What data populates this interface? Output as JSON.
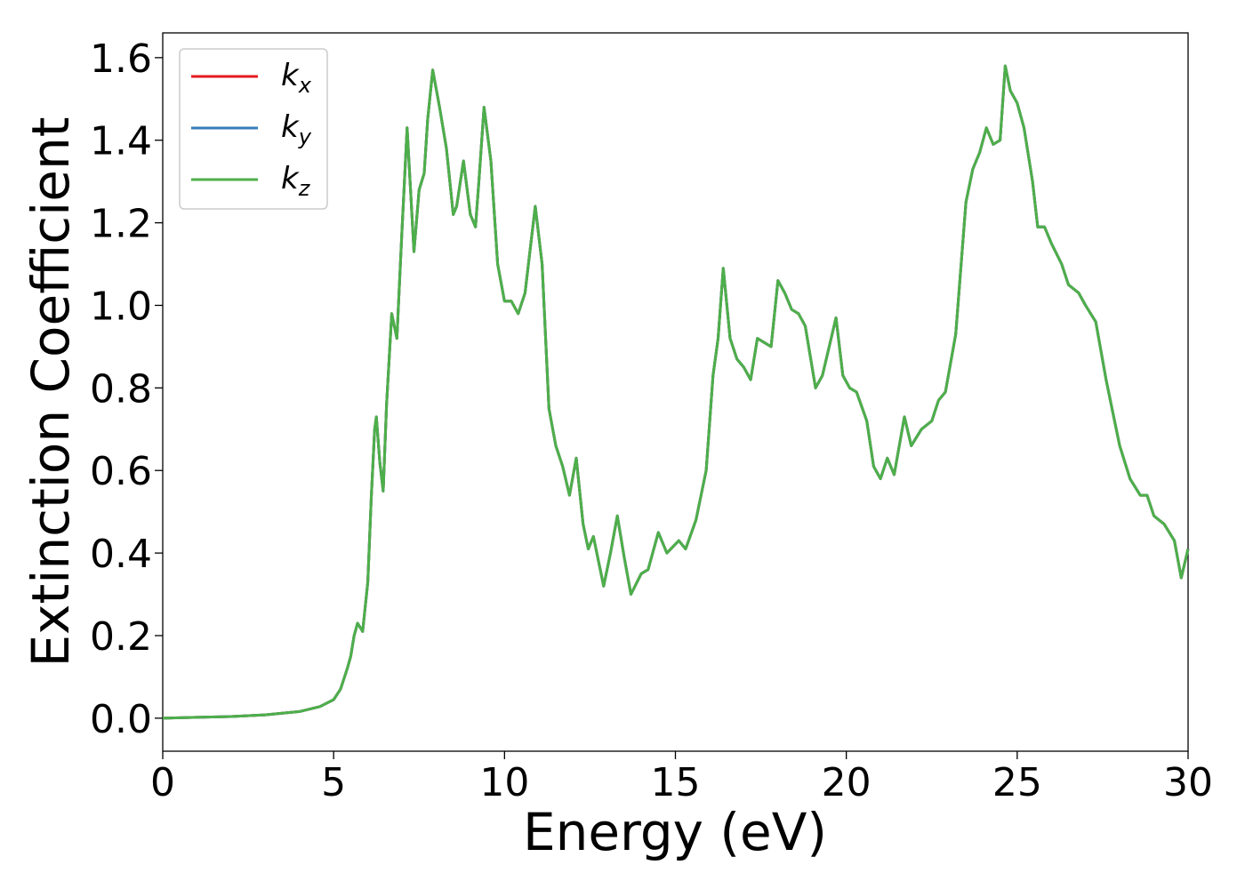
{
  "chart_data": {
    "type": "line",
    "xlabel": "Energy (eV)",
    "ylabel": "Extinction Coefficient",
    "xlim": [
      0,
      30
    ],
    "ylim": [
      -0.08,
      1.66
    ],
    "xticks": [
      0,
      5,
      10,
      15,
      20,
      25,
      30
    ],
    "xtick_labels": [
      "0",
      "5",
      "10",
      "15",
      "20",
      "25",
      "30"
    ],
    "yticks": [
      0.0,
      0.2,
      0.4,
      0.6,
      0.8,
      1.0,
      1.2,
      1.4,
      1.6
    ],
    "ytick_labels": [
      "0.0",
      "0.2",
      "0.4",
      "0.6",
      "0.8",
      "1.0",
      "1.2",
      "1.4",
      "1.6"
    ],
    "grid": false,
    "legend_position": "top-left",
    "series": [
      {
        "name": "k",
        "subscript": "x",
        "color": "#e41a1c",
        "points": "shared"
      },
      {
        "name": "k",
        "subscript": "y",
        "color": "#377eb8",
        "points": "shared"
      },
      {
        "name": "k",
        "subscript": "z",
        "color": "#4daf4a",
        "points": "shared"
      }
    ],
    "shared_points": [
      [
        0,
        0.0
      ],
      [
        1,
        0.002
      ],
      [
        2,
        0.004
      ],
      [
        3,
        0.008
      ],
      [
        4,
        0.016
      ],
      [
        4.6,
        0.028
      ],
      [
        5.0,
        0.045
      ],
      [
        5.2,
        0.07
      ],
      [
        5.4,
        0.12
      ],
      [
        5.5,
        0.15
      ],
      [
        5.6,
        0.2
      ],
      [
        5.7,
        0.23
      ],
      [
        5.85,
        0.21
      ],
      [
        6.0,
        0.33
      ],
      [
        6.1,
        0.53
      ],
      [
        6.2,
        0.7
      ],
      [
        6.25,
        0.73
      ],
      [
        6.35,
        0.62
      ],
      [
        6.45,
        0.55
      ],
      [
        6.55,
        0.76
      ],
      [
        6.7,
        0.98
      ],
      [
        6.85,
        0.92
      ],
      [
        7.0,
        1.18
      ],
      [
        7.15,
        1.43
      ],
      [
        7.35,
        1.13
      ],
      [
        7.5,
        1.28
      ],
      [
        7.65,
        1.32
      ],
      [
        7.75,
        1.45
      ],
      [
        7.9,
        1.57
      ],
      [
        8.1,
        1.48
      ],
      [
        8.3,
        1.38
      ],
      [
        8.5,
        1.22
      ],
      [
        8.6,
        1.24
      ],
      [
        8.8,
        1.35
      ],
      [
        9.0,
        1.22
      ],
      [
        9.15,
        1.19
      ],
      [
        9.25,
        1.3
      ],
      [
        9.4,
        1.48
      ],
      [
        9.6,
        1.35
      ],
      [
        9.8,
        1.1
      ],
      [
        10.0,
        1.01
      ],
      [
        10.2,
        1.01
      ],
      [
        10.4,
        0.98
      ],
      [
        10.6,
        1.03
      ],
      [
        10.9,
        1.24
      ],
      [
        11.1,
        1.1
      ],
      [
        11.3,
        0.75
      ],
      [
        11.5,
        0.66
      ],
      [
        11.7,
        0.61
      ],
      [
        11.9,
        0.54
      ],
      [
        12.1,
        0.63
      ],
      [
        12.3,
        0.47
      ],
      [
        12.45,
        0.41
      ],
      [
        12.6,
        0.44
      ],
      [
        12.9,
        0.32
      ],
      [
        13.1,
        0.4
      ],
      [
        13.3,
        0.49
      ],
      [
        13.5,
        0.39
      ],
      [
        13.7,
        0.3
      ],
      [
        14.0,
        0.35
      ],
      [
        14.2,
        0.36
      ],
      [
        14.5,
        0.45
      ],
      [
        14.75,
        0.4
      ],
      [
        15.1,
        0.43
      ],
      [
        15.3,
        0.41
      ],
      [
        15.6,
        0.48
      ],
      [
        15.9,
        0.6
      ],
      [
        16.1,
        0.83
      ],
      [
        16.25,
        0.92
      ],
      [
        16.4,
        1.09
      ],
      [
        16.6,
        0.92
      ],
      [
        16.8,
        0.87
      ],
      [
        17.0,
        0.85
      ],
      [
        17.2,
        0.82
      ],
      [
        17.4,
        0.92
      ],
      [
        17.6,
        0.91
      ],
      [
        17.8,
        0.9
      ],
      [
        18.0,
        1.06
      ],
      [
        18.2,
        1.03
      ],
      [
        18.4,
        0.99
      ],
      [
        18.6,
        0.98
      ],
      [
        18.8,
        0.95
      ],
      [
        19.1,
        0.8
      ],
      [
        19.3,
        0.83
      ],
      [
        19.7,
        0.97
      ],
      [
        19.9,
        0.83
      ],
      [
        20.1,
        0.8
      ],
      [
        20.3,
        0.79
      ],
      [
        20.6,
        0.72
      ],
      [
        20.8,
        0.61
      ],
      [
        21.0,
        0.58
      ],
      [
        21.2,
        0.63
      ],
      [
        21.4,
        0.59
      ],
      [
        21.7,
        0.73
      ],
      [
        21.9,
        0.66
      ],
      [
        22.2,
        0.7
      ],
      [
        22.5,
        0.72
      ],
      [
        22.7,
        0.77
      ],
      [
        22.9,
        0.79
      ],
      [
        23.2,
        0.93
      ],
      [
        23.5,
        1.25
      ],
      [
        23.7,
        1.33
      ],
      [
        23.9,
        1.37
      ],
      [
        24.1,
        1.43
      ],
      [
        24.3,
        1.39
      ],
      [
        24.5,
        1.4
      ],
      [
        24.65,
        1.58
      ],
      [
        24.8,
        1.52
      ],
      [
        25.0,
        1.49
      ],
      [
        25.2,
        1.43
      ],
      [
        25.45,
        1.3
      ],
      [
        25.6,
        1.19
      ],
      [
        25.8,
        1.19
      ],
      [
        26.0,
        1.15
      ],
      [
        26.3,
        1.1
      ],
      [
        26.5,
        1.05
      ],
      [
        26.8,
        1.03
      ],
      [
        27.0,
        1.0
      ],
      [
        27.3,
        0.96
      ],
      [
        27.6,
        0.82
      ],
      [
        27.8,
        0.74
      ],
      [
        28.0,
        0.66
      ],
      [
        28.3,
        0.58
      ],
      [
        28.6,
        0.54
      ],
      [
        28.8,
        0.54
      ],
      [
        29.0,
        0.49
      ],
      [
        29.3,
        0.47
      ],
      [
        29.6,
        0.43
      ],
      [
        29.8,
        0.34
      ],
      [
        30.0,
        0.41
      ]
    ]
  }
}
